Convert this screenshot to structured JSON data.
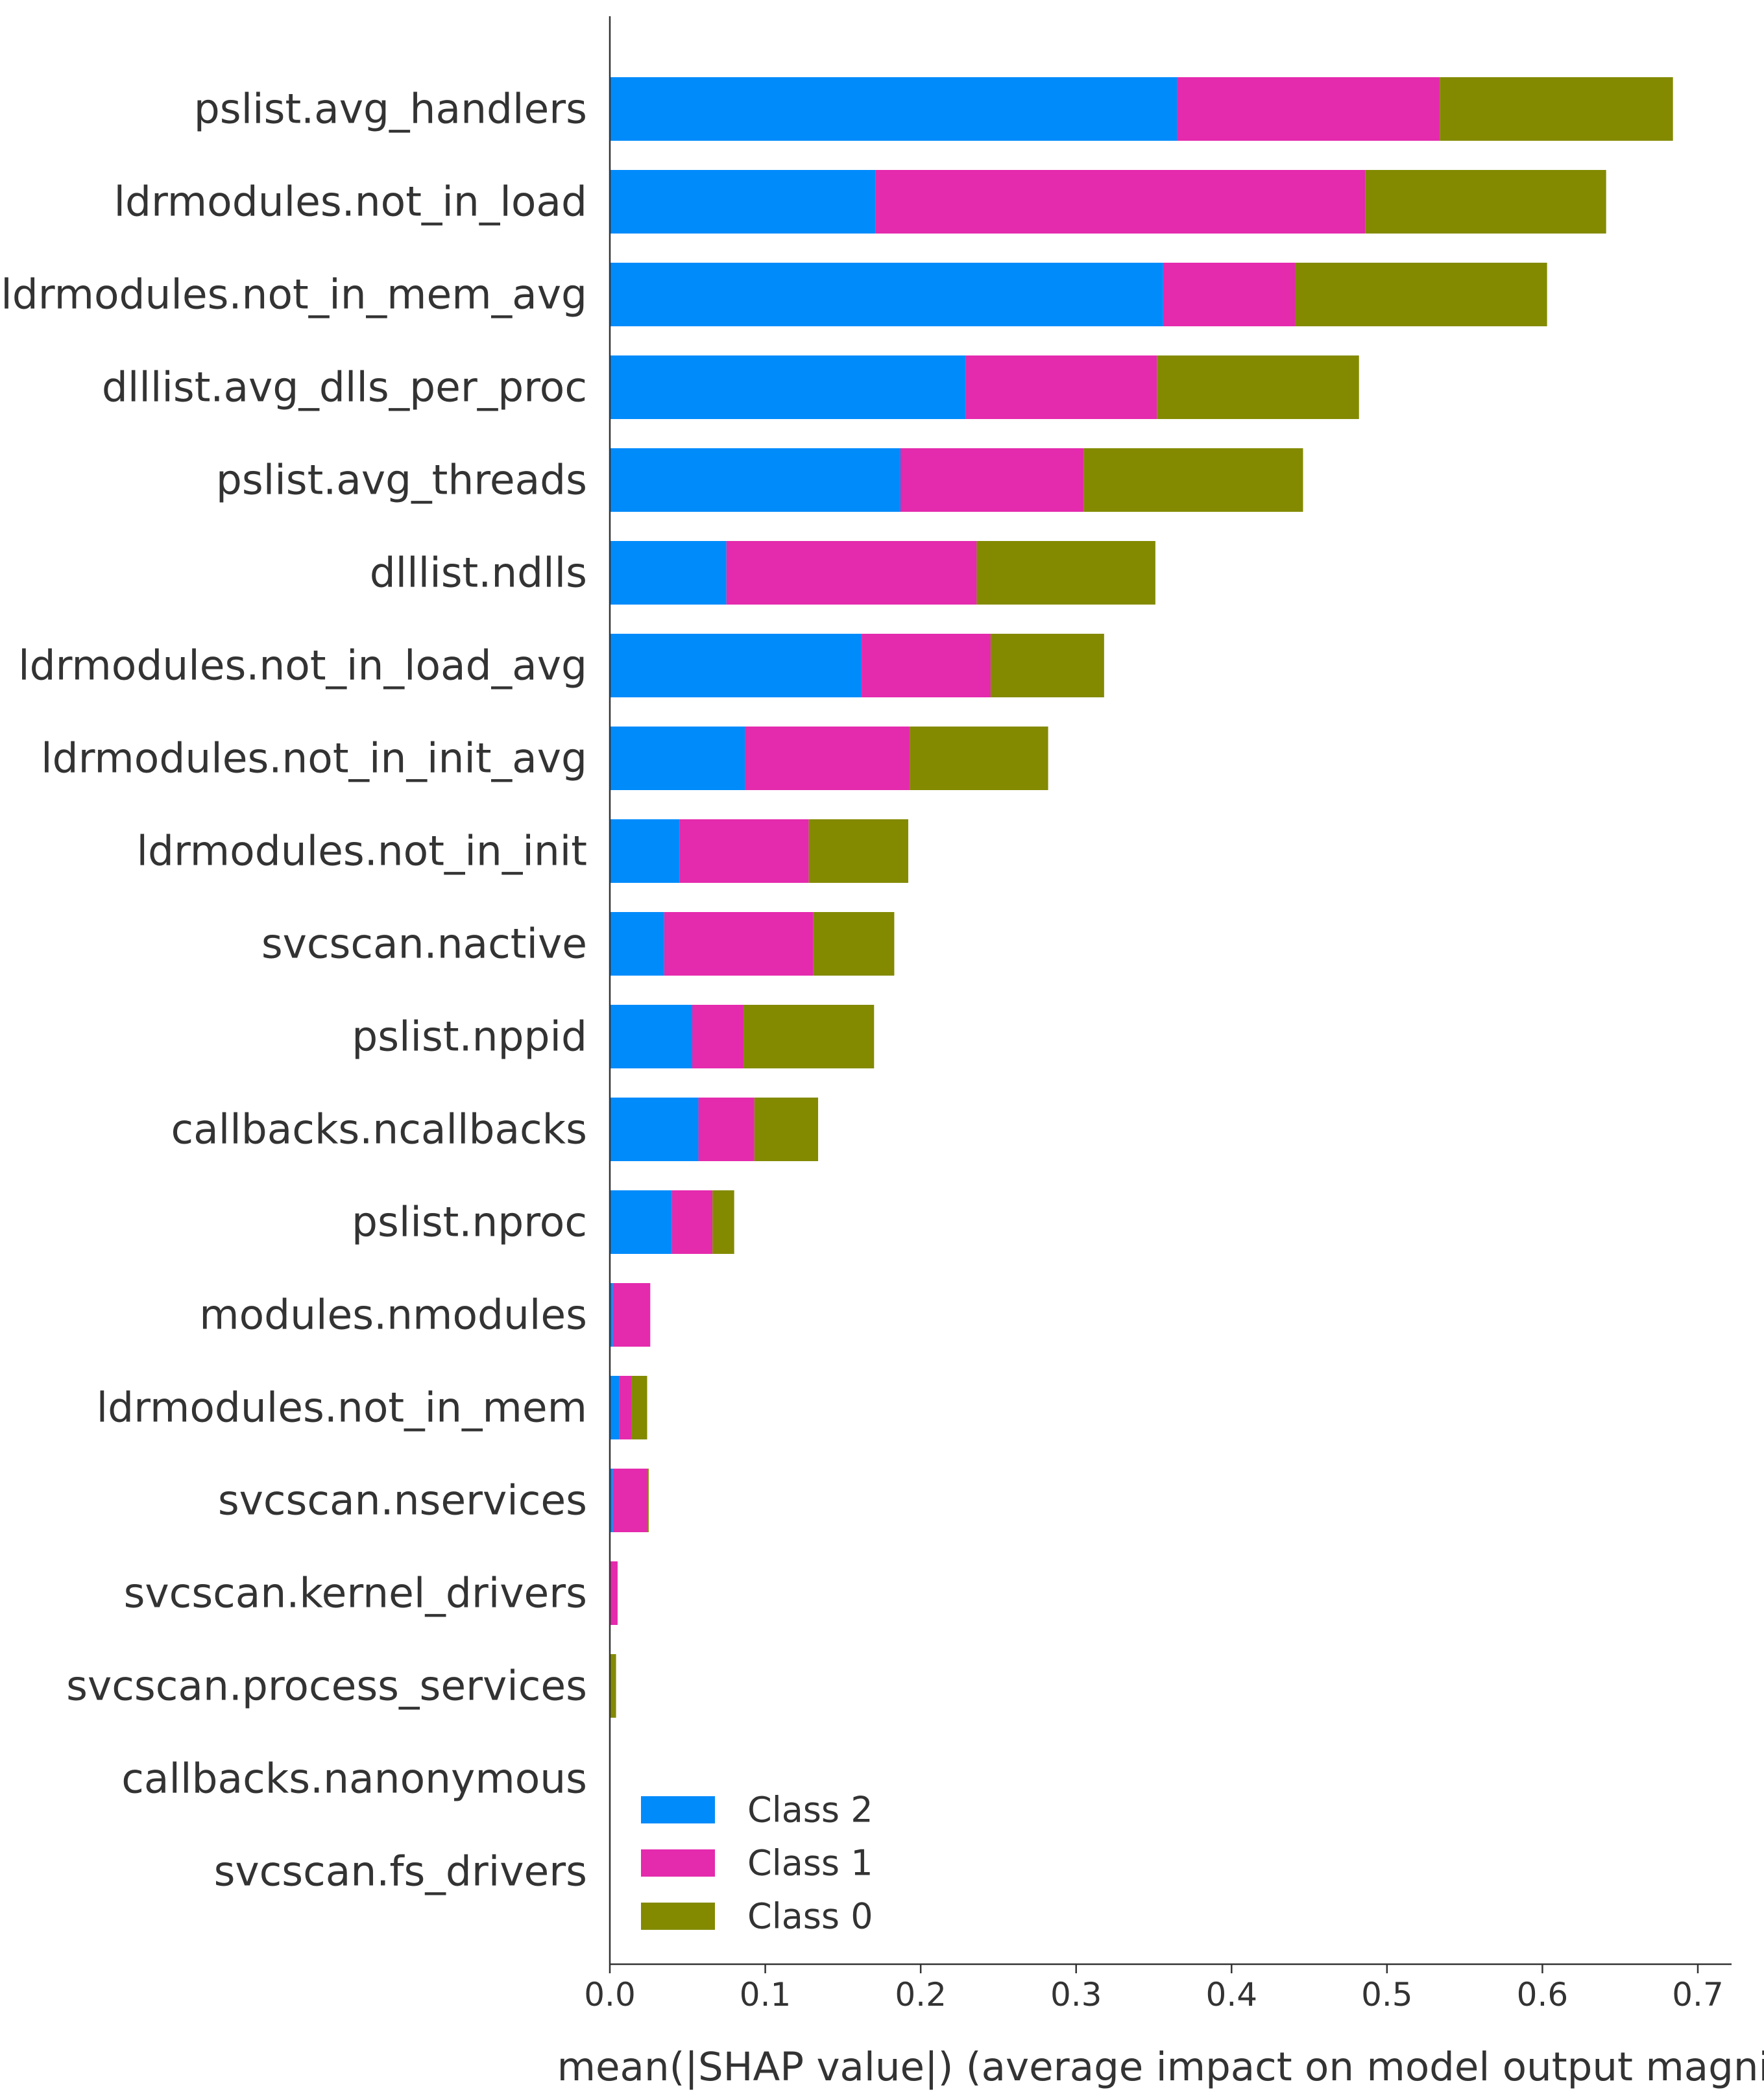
{
  "chart_data": {
    "type": "bar",
    "orientation": "horizontal",
    "stacked": true,
    "categories": [
      "pslist.avg_handlers",
      "ldrmodules.not_in_load",
      "ldrmodules.not_in_mem_avg",
      "dlllist.avg_dlls_per_proc",
      "pslist.avg_threads",
      "dlllist.ndlls",
      "ldrmodules.not_in_load_avg",
      "ldrmodules.not_in_init_avg",
      "ldrmodules.not_in_init",
      "svcscan.nactive",
      "pslist.nppid",
      "callbacks.ncallbacks",
      "pslist.nproc",
      "modules.nmodules",
      "ldrmodules.not_in_mem",
      "svcscan.nservices",
      "svcscan.kernel_drivers",
      "svcscan.process_services",
      "callbacks.nanonymous",
      "svcscan.fs_drivers"
    ],
    "series": [
      {
        "name": "Class 2",
        "color": "#008bfb",
        "values": [
          0.365,
          0.171,
          0.356,
          0.229,
          0.187,
          0.075,
          0.162,
          0.087,
          0.045,
          0.035,
          0.053,
          0.057,
          0.04,
          0.002,
          0.006,
          0.002,
          0.0,
          0.0,
          0.0,
          0.0
        ]
      },
      {
        "name": "Class 1",
        "color": "#e42aad",
        "values": [
          0.169,
          0.315,
          0.085,
          0.123,
          0.118,
          0.161,
          0.083,
          0.106,
          0.083,
          0.096,
          0.033,
          0.036,
          0.026,
          0.024,
          0.008,
          0.022,
          0.005,
          0.0,
          0.0,
          0.0
        ]
      },
      {
        "name": "Class 0",
        "color": "#838a00",
        "values": [
          0.15,
          0.155,
          0.162,
          0.13,
          0.141,
          0.115,
          0.073,
          0.089,
          0.064,
          0.052,
          0.084,
          0.041,
          0.014,
          0.0,
          0.01,
          0.001,
          0.0,
          0.004,
          0.0,
          0.0
        ]
      }
    ],
    "xlim": [
      0,
      0.72
    ],
    "xticks": [
      "0.0",
      "0.1",
      "0.2",
      "0.3",
      "0.4",
      "0.5",
      "0.6",
      "0.7"
    ],
    "xlabel": "mean(|SHAP value|) (average impact on model output magnit",
    "ylabel": "",
    "title": "",
    "legend": {
      "placement": "bottom-left",
      "entries": [
        "Class 2",
        "Class 1",
        "Class 0"
      ]
    },
    "grid": false
  }
}
